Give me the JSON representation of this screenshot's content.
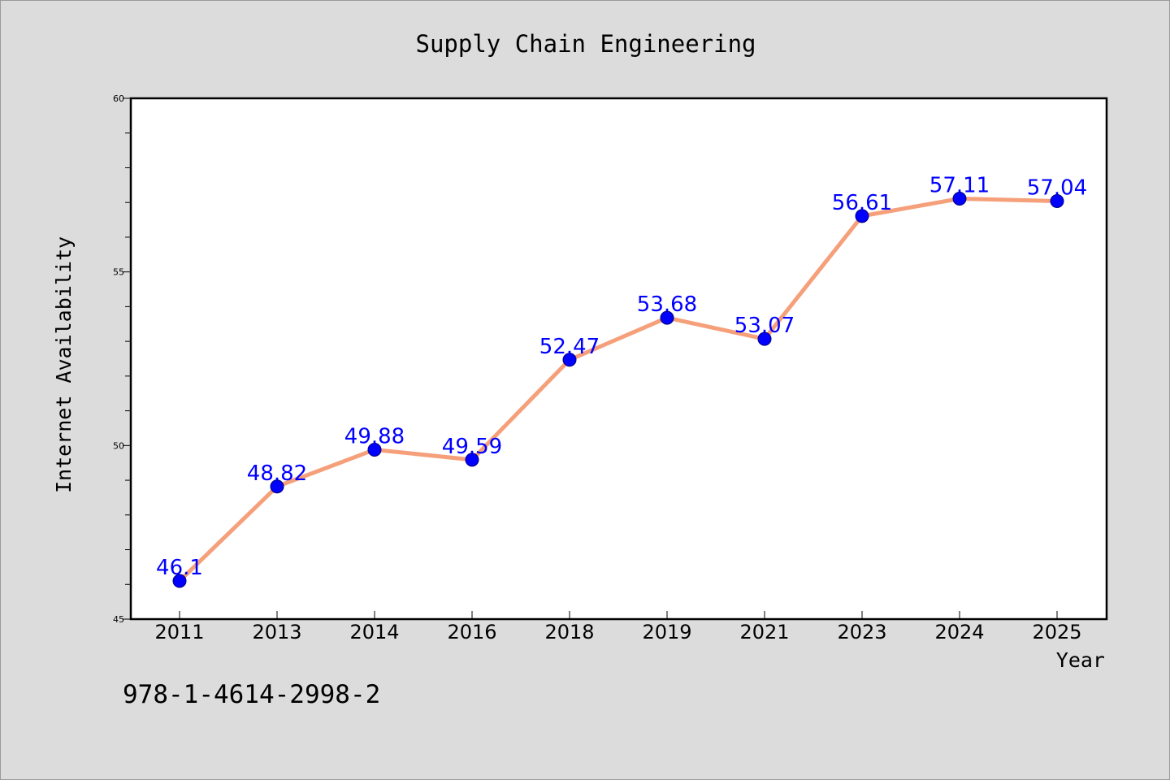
{
  "chart_data": {
    "type": "line",
    "title": "Supply Chain Engineering",
    "xlabel": "Year",
    "ylabel": "Internet Availability",
    "categories": [
      "2011",
      "2013",
      "2014",
      "2016",
      "2018",
      "2019",
      "2021",
      "2023",
      "2024",
      "2025"
    ],
    "series": [
      {
        "values": [
          46.1,
          48.82,
          49.88,
          49.59,
          52.47,
          53.68,
          53.07,
          56.61,
          57.11,
          57.04
        ],
        "labels": [
          "46.1",
          "48.82",
          "49.88",
          "49.59",
          "52.47",
          "53.68",
          "53.07",
          "56.61",
          "57.11",
          "57.04"
        ],
        "line_color": "#f5a07a",
        "marker_color": "#0000ff"
      }
    ],
    "ylim": [
      45,
      60
    ],
    "yticks": [
      45,
      50,
      55,
      60
    ],
    "ytick_labels": [
      "45",
      "50",
      "55",
      "60"
    ],
    "y_minor_step": 1,
    "grid": false,
    "legend": false
  },
  "footer_text": "978-1-4614-2998-2",
  "colors": {
    "background": "#dcdcdc",
    "plot_background": "#ffffff",
    "axis": "#000000",
    "data_label": "#0000ff"
  }
}
